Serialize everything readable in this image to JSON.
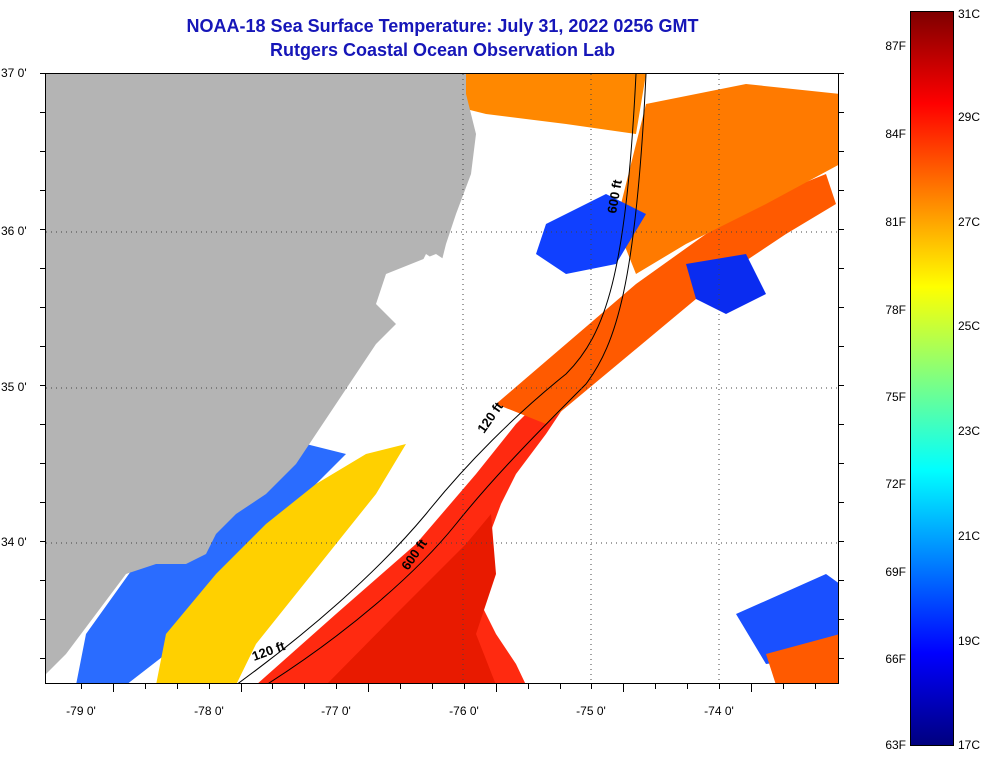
{
  "header": {
    "title": "NOAA-18 Sea Surface Temperature:  July 31, 2022 0256 GMT",
    "subtitle": "Rutgers Coastal Ocean Observation Lab"
  },
  "map": {
    "longitude_labels": [
      "-79 0'",
      "-78 0'",
      "-77 0'",
      "-76 0'",
      "-75 0'",
      "-74 0'"
    ],
    "latitude_labels": [
      "37 0'",
      "36 0'",
      "35 0'",
      "34 0'"
    ],
    "isobath_labels": [
      "600 ft",
      "120 ft",
      "600 ft",
      "120 ft"
    ],
    "land_color": "#b4b4b4",
    "cloud_color": "#ffffff"
  },
  "colorbar": {
    "celsius_labels": [
      "31C",
      "29C",
      "27C",
      "25C",
      "23C",
      "21C",
      "19C",
      "17C"
    ],
    "fahrenheit_labels": [
      "87F",
      "84F",
      "81F",
      "78F",
      "75F",
      "72F",
      "69F",
      "66F",
      "63F"
    ],
    "stops": [
      "#00007f",
      "#0000ff",
      "#0080ff",
      "#00ffff",
      "#80ff80",
      "#ffff00",
      "#ff8000",
      "#ff0000",
      "#7f0000"
    ]
  }
}
